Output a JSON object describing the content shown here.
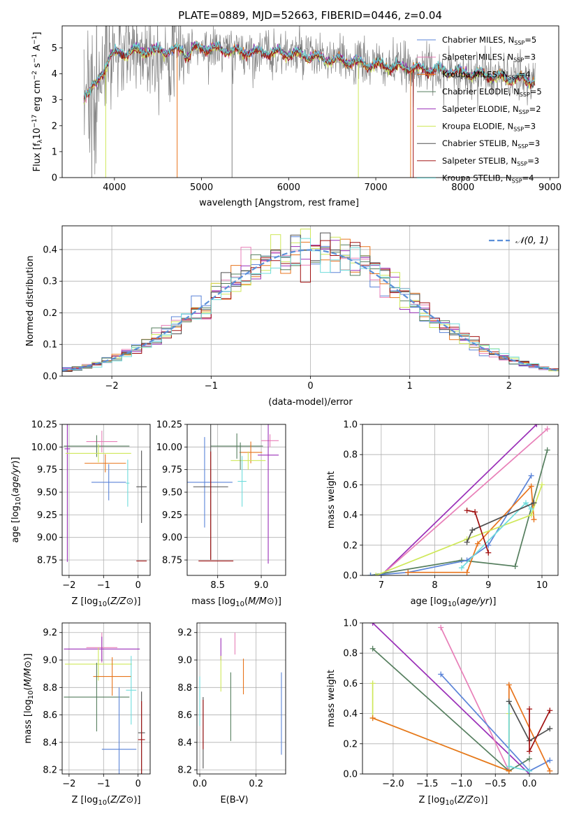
{
  "title": "PLATE=0889, MJD=52663, FIBERID=0446, z=0.04",
  "colors": {
    "chab_miles": "#5b84d8",
    "salp_miles": "#e87fb8",
    "krou_miles": "#e8741c",
    "chab_elodie": "#557e5e",
    "salp_elodie": "#9a2fb8",
    "krou_elodie": "#cfe85a",
    "chab_stelib": "#505050",
    "salp_stelib": "#a01010",
    "krou_stelib": "#6fdcdc",
    "grey": "#808080"
  },
  "chart_data": [
    {
      "id": "spectrum",
      "type": "line",
      "title": "PLATE=0889, MJD=52663, FIBERID=0446, z=0.04",
      "xlabel": "wavelength [Angstrom, rest frame]",
      "ylabel": "Flux [f_λ 10^-17 erg cm^-2 s^-1 A^-1]",
      "xlim": [
        3400,
        9100
      ],
      "ylim": [
        0,
        5.85
      ],
      "xticks": [
        4000,
        5000,
        6000,
        7000,
        8000,
        9000
      ],
      "yticks": [
        0,
        1,
        2,
        3,
        4,
        5
      ],
      "grid": false,
      "legend_position": "top-right",
      "legend": [
        {
          "key": "chab_miles",
          "label": "Chabrier MILES, N",
          "sub": "SSP",
          "suffix": "=5"
        },
        {
          "key": "salp_miles",
          "label": "Salpeter MILES, N",
          "sub": "SSP",
          "suffix": "=3"
        },
        {
          "key": "krou_miles",
          "label": "Kroupa MILES, N",
          "sub": "SSP",
          "suffix": "=4"
        },
        {
          "key": "chab_elodie",
          "label": "Chabrier ELODIE, N",
          "sub": "SSP",
          "suffix": "=5"
        },
        {
          "key": "salp_elodie",
          "label": "Salpeter ELODIE, N",
          "sub": "SSP",
          "suffix": "=2"
        },
        {
          "key": "krou_elodie",
          "label": "Kroupa ELODIE, N",
          "sub": "SSP",
          "suffix": "=3"
        },
        {
          "key": "chab_stelib",
          "label": "Chabrier STELIB, N",
          "sub": "SSP",
          "suffix": "=3"
        },
        {
          "key": "salp_stelib",
          "label": "Salpeter STELIB, N",
          "sub": "SSP",
          "suffix": "=3"
        },
        {
          "key": "krou_stelib",
          "label": "Kroupa STELIB, N",
          "sub": "SSP",
          "suffix": "=4"
        }
      ],
      "observed_continuum": [
        [
          3650,
          3.2
        ],
        [
          3800,
          3.6
        ],
        [
          3950,
          4.7
        ],
        [
          4050,
          4.8
        ],
        [
          4300,
          4.9
        ],
        [
          4600,
          4.9
        ],
        [
          5000,
          5.0
        ],
        [
          5500,
          4.85
        ],
        [
          6000,
          4.8
        ],
        [
          6500,
          4.55
        ],
        [
          7000,
          4.35
        ],
        [
          7500,
          4.2
        ],
        [
          8000,
          4.05
        ],
        [
          8500,
          3.85
        ],
        [
          8830,
          3.75
        ]
      ],
      "model_offsets": [
        0.0,
        -0.04,
        0.03,
        -0.02,
        0.05,
        -0.06,
        0.02,
        -0.05,
        0.06
      ],
      "spikes": [
        {
          "key": "krou_miles",
          "x": 4720
        },
        {
          "key": "krou_elodie",
          "x": 6800
        },
        {
          "key": "krou_miles",
          "x": 7400
        },
        {
          "key": "grey",
          "x": 5350
        },
        {
          "key": "krou_elodie",
          "x": 3900
        },
        {
          "key": "salp_stelib",
          "x": 7430
        }
      ]
    },
    {
      "id": "residuals",
      "type": "histogram",
      "xlabel": "(data-model)/error",
      "ylabel": "Normed distribution",
      "xlim": [
        -2.5,
        2.5
      ],
      "ylim": [
        0,
        0.475
      ],
      "xticks": [
        -2,
        -1,
        0,
        1,
        2
      ],
      "yticks": [
        0.0,
        0.1,
        0.2,
        0.3,
        0.4
      ],
      "grid": true,
      "legend_position": "top-right",
      "reference_label": "N(0,1)",
      "bin_width": 0.1
    },
    {
      "id": "age_vs_Z",
      "type": "errorbar",
      "xlabel": "Z [log10(Z/Z⊙)]",
      "ylabel": "age [log10(age/yr)]",
      "xlim": [
        -2.2,
        0.35
      ],
      "ylim": [
        8.58,
        10.25
      ],
      "xticks": [
        -2,
        -1,
        0
      ],
      "yticks": [
        8.75,
        9.0,
        9.25,
        9.5,
        9.75,
        10.0,
        10.25
      ],
      "grid": true,
      "points": [
        {
          "key": "salp_miles",
          "x": -1.05,
          "xerr": 0.45,
          "y": 10.06,
          "yerr": 0.12
        },
        {
          "key": "chab_elodie",
          "x": -1.2,
          "xerr": 0.95,
          "y": 10.01,
          "yerr": 0.12
        },
        {
          "key": "salp_elodie",
          "x": -2.05,
          "xerr": 0.08,
          "y": 9.98,
          "yerr": 1.25
        },
        {
          "key": "krou_elodie",
          "x": -1.15,
          "xerr": 0.95,
          "y": 9.93,
          "yerr": 0.1
        },
        {
          "key": "krou_miles",
          "x": -0.95,
          "xerr": 0.6,
          "y": 9.82,
          "yerr": 0.1
        },
        {
          "key": "chab_miles",
          "x": -0.85,
          "xerr": 0.5,
          "y": 9.61,
          "yerr": 0.2
        },
        {
          "key": "krou_stelib",
          "x": -0.3,
          "xerr": 0.05,
          "y": 9.6,
          "yerr": 0.26
        },
        {
          "key": "chab_stelib",
          "x": 0.1,
          "xerr": 0.15,
          "y": 9.56,
          "yerr": 0.4
        },
        {
          "key": "salp_stelib",
          "x": 0.1,
          "xerr": 0.15,
          "y": 8.74,
          "yerr": 0.0
        }
      ]
    },
    {
      "id": "age_vs_mass",
      "type": "errorbar",
      "xlabel": "mass [log10(M/M⊙)]",
      "ylabel": "",
      "xlim": [
        8.15,
        9.28
      ],
      "ylim": [
        8.58,
        10.25
      ],
      "xticks": [
        8.5,
        9.0
      ],
      "yticks": [
        8.75,
        9.0,
        9.25,
        9.5,
        9.75,
        10.0,
        10.25
      ],
      "grid": true,
      "points": [
        {
          "key": "salp_miles",
          "x": 9.1,
          "xerr": 0.1,
          "y": 10.07,
          "yerr": 0.07
        },
        {
          "key": "chab_elodie",
          "x": 8.72,
          "xerr": 0.3,
          "y": 10.01,
          "yerr": 0.14
        },
        {
          "key": "krou_miles",
          "x": 8.88,
          "xerr": 0.13,
          "y": 9.94,
          "yerr": 0.12
        },
        {
          "key": "salp_elodie",
          "x": 9.08,
          "xerr": 0.12,
          "y": 9.91,
          "yerr": 1.2
        },
        {
          "key": "krou_elodie",
          "x": 8.85,
          "xerr": 0.2,
          "y": 9.85,
          "yerr": 0.1
        },
        {
          "key": "chab_miles",
          "x": 8.35,
          "xerr": 0.32,
          "y": 9.61,
          "yerr": 0.5
        },
        {
          "key": "krou_stelib",
          "x": 8.78,
          "xerr": 0.05,
          "y": 9.62,
          "yerr": 0.28
        },
        {
          "key": "chab_stelib",
          "x": 8.42,
          "xerr": 0.2,
          "y": 9.56,
          "yerr": 0.8
        },
        {
          "key": "salp_stelib",
          "x": 8.48,
          "xerr": 0.2,
          "y": 8.74,
          "yerr": 0.0
        },
        {
          "key": "chab_elodie",
          "x": 8.76,
          "xerr": 0.0,
          "y": 9.9,
          "yerr": 0.15
        },
        {
          "key": "salp_stelib",
          "x": 8.42,
          "xerr": 0.0,
          "y": 9.35,
          "yerr": 0.6
        }
      ]
    },
    {
      "id": "weight_vs_age",
      "type": "line",
      "xlabel": "age [log10(age/yr)]",
      "ylabel": "mass weight",
      "xlim": [
        6.65,
        10.3
      ],
      "ylim": [
        0,
        1.0
      ],
      "xticks": [
        7,
        8,
        9,
        10
      ],
      "yticks": [
        0.0,
        0.2,
        0.4,
        0.6,
        0.8,
        1.0
      ],
      "grid": true,
      "series": [
        {
          "key": "salp_elodie",
          "x": [
            7.0,
            9.9
          ],
          "y": [
            0.0,
            1.0
          ]
        },
        {
          "key": "salp_miles",
          "x": [
            7.0,
            10.1
          ],
          "y": [
            0.0,
            0.97
          ]
        },
        {
          "key": "chab_elodie",
          "x": [
            6.8,
            8.5,
            9.5,
            10.1
          ],
          "y": [
            0.0,
            0.1,
            0.06,
            0.83
          ]
        },
        {
          "key": "chab_miles",
          "x": [
            6.8,
            7.5,
            8.6,
            9.0,
            9.8
          ],
          "y": [
            0.0,
            0.02,
            0.1,
            0.2,
            0.66
          ]
        },
        {
          "key": "krou_miles",
          "x": [
            7.5,
            8.6,
            8.8,
            9.8,
            9.85
          ],
          "y": [
            0.02,
            0.02,
            0.21,
            0.59,
            0.37
          ]
        },
        {
          "key": "krou_elodie",
          "x": [
            6.9,
            8.6,
            9.8,
            10.0
          ],
          "y": [
            0.0,
            0.24,
            0.4,
            0.6
          ]
        },
        {
          "key": "krou_stelib",
          "x": [
            8.5,
            9.7,
            9.8
          ],
          "y": [
            0.05,
            0.48,
            0.44
          ]
        },
        {
          "key": "chab_stelib",
          "x": [
            8.6,
            8.7,
            9.85
          ],
          "y": [
            0.22,
            0.3,
            0.48
          ]
        },
        {
          "key": "salp_stelib",
          "x": [
            8.6,
            8.75,
            9.0
          ],
          "y": [
            0.43,
            0.42,
            0.15
          ]
        }
      ]
    },
    {
      "id": "mass_vs_Z",
      "type": "errorbar",
      "xlabel": "Z [log10(Z/Z⊙)]",
      "ylabel": "mass [log10(M/M⊙)]",
      "xlim": [
        -2.2,
        0.35
      ],
      "ylim": [
        8.17,
        9.27
      ],
      "xticks": [
        -2,
        -1,
        0
      ],
      "yticks": [
        8.2,
        8.4,
        8.6,
        8.8,
        9.0,
        9.2
      ],
      "grid": true,
      "points": [
        {
          "key": "salp_miles",
          "x": -1.05,
          "xerr": 0.45,
          "y": 9.09,
          "yerr": 0.11
        },
        {
          "key": "salp_elodie",
          "x": -1.05,
          "xerr": 1.1,
          "y": 9.08,
          "yerr": 0.09
        },
        {
          "key": "krou_elodie",
          "x": -1.15,
          "xerr": 0.97,
          "y": 8.97,
          "yerr": 0.12
        },
        {
          "key": "krou_miles",
          "x": -0.75,
          "xerr": 0.55,
          "y": 8.88,
          "yerr": 0.14
        },
        {
          "key": "chab_elodie",
          "x": -1.2,
          "xerr": 0.95,
          "y": 8.73,
          "yerr": 0.25
        },
        {
          "key": "krou_stelib",
          "x": -0.2,
          "xerr": 0.15,
          "y": 8.78,
          "yerr": 0.25
        },
        {
          "key": "chab_miles",
          "x": -0.55,
          "xerr": 0.5,
          "y": 8.35,
          "yerr": 0.45
        },
        {
          "key": "chab_stelib",
          "x": 0.1,
          "xerr": 0.1,
          "y": 8.47,
          "yerr": 0.3
        },
        {
          "key": "salp_stelib",
          "x": 0.1,
          "xerr": 0.1,
          "y": 8.42,
          "yerr": 0.28
        }
      ]
    },
    {
      "id": "mass_vs_EBV",
      "type": "errorbar",
      "xlabel": "E(B-V)",
      "ylabel": "",
      "xlim": [
        -0.01,
        0.305
      ],
      "ylim": [
        8.17,
        9.27
      ],
      "xticks": [
        0.0,
        0.2
      ],
      "yticks": [
        8.2,
        8.4,
        8.6,
        8.8,
        9.0,
        9.2
      ],
      "grid": true,
      "points": [
        {
          "key": "salp_miles",
          "x": 0.125,
          "xerr": 0.0,
          "y": 9.12,
          "yerr": 0.08
        },
        {
          "key": "salp_elodie",
          "x": 0.075,
          "xerr": 0.0,
          "y": 9.08,
          "yerr": 0.08
        },
        {
          "key": "krou_elodie",
          "x": 0.075,
          "xerr": 0.0,
          "y": 8.9,
          "yerr": 0.13
        },
        {
          "key": "krou_miles",
          "x": 0.155,
          "xerr": 0.0,
          "y": 8.88,
          "yerr": 0.13
        },
        {
          "key": "chab_elodie",
          "x": 0.11,
          "xerr": 0.0,
          "y": 8.66,
          "yerr": 0.25
        },
        {
          "key": "krou_stelib",
          "x": 0.0,
          "xerr": 0.0,
          "y": 8.7,
          "yerr": 0.18
        },
        {
          "key": "chab_miles",
          "x": 0.29,
          "xerr": 0.0,
          "y": 8.61,
          "yerr": 0.3
        },
        {
          "key": "chab_stelib",
          "x": 0.012,
          "xerr": 0.0,
          "y": 8.47,
          "yerr": 0.26
        },
        {
          "key": "salp_stelib",
          "x": 0.012,
          "xerr": 0.0,
          "y": 8.53,
          "yerr": 0.18
        }
      ]
    },
    {
      "id": "weight_vs_Z",
      "type": "line",
      "xlabel": "Z [log10(Z/Z⊙)]",
      "ylabel": "mass weight",
      "xlim": [
        -2.45,
        0.42
      ],
      "ylim": [
        0,
        1.0
      ],
      "xticks": [
        -2.0,
        -1.5,
        -1.0,
        -0.5,
        0.0
      ],
      "yticks": [
        0.0,
        0.2,
        0.4,
        0.6,
        0.8,
        1.0
      ],
      "grid": true,
      "series": [
        {
          "key": "salp_elodie",
          "x": [
            -2.3,
            0.0
          ],
          "y": [
            1.0,
            0.0
          ]
        },
        {
          "key": "salp_miles",
          "x": [
            -1.3,
            -0.3
          ],
          "y": [
            0.97,
            0.02
          ]
        },
        {
          "key": "chab_elodie",
          "x": [
            -2.3,
            -0.3,
            0.0
          ],
          "y": [
            0.83,
            0.02,
            0.1
          ]
        },
        {
          "key": "chab_miles",
          "x": [
            -1.3,
            0.0,
            0.3
          ],
          "y": [
            0.66,
            0.02,
            0.09
          ]
        },
        {
          "key": "krou_elodie",
          "x": [
            -2.3,
            -2.3,
            -0.3,
            -0.3
          ],
          "y": [
            0.6,
            0.37,
            0.02,
            0.4
          ]
        },
        {
          "key": "krou_miles",
          "x": [
            -2.3,
            -0.3,
            -0.3,
            0.3
          ],
          "y": [
            0.37,
            0.02,
            0.59,
            0.02
          ]
        },
        {
          "key": "krou_stelib",
          "x": [
            -0.3,
            -0.3,
            0.0
          ],
          "y": [
            0.48,
            0.05,
            0.02
          ]
        },
        {
          "key": "chab_stelib",
          "x": [
            -0.3,
            0.0,
            0.3
          ],
          "y": [
            0.48,
            0.22,
            0.3
          ]
        },
        {
          "key": "salp_stelib",
          "x": [
            0.0,
            0.0,
            0.3
          ],
          "y": [
            0.43,
            0.15,
            0.42
          ]
        }
      ]
    }
  ]
}
